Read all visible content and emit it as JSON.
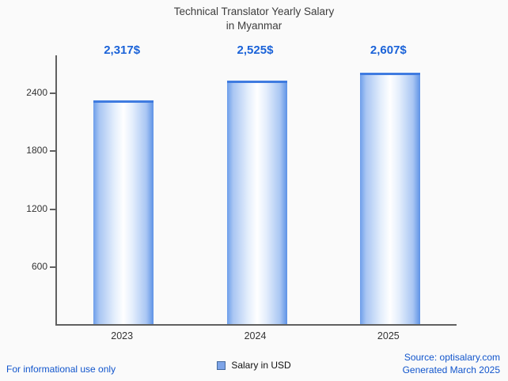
{
  "title": {
    "line1": "Technical Translator Yearly Salary",
    "line2": "in Myanmar"
  },
  "chart_data": {
    "type": "bar",
    "title": "Technical Translator Yearly Salary in Myanmar",
    "categories": [
      "2023",
      "2024",
      "2025"
    ],
    "values": [
      2317,
      2525,
      2607
    ],
    "value_labels": [
      "2,317$",
      "2,525$",
      "2,607$"
    ],
    "series_name": "Salary in USD",
    "xlabel": "",
    "ylabel": "",
    "ylim": [
      0,
      2785
    ],
    "yticks": [
      600,
      1200,
      1800,
      2400
    ],
    "grid": false,
    "legend_position": "bottom"
  },
  "legend": {
    "label": "Salary in USD"
  },
  "footer": {
    "left_note": "For informational use only",
    "source": "Source: optisalary.com",
    "generated": "Generated March 2025"
  },
  "colors": {
    "bar_fill_edge": "#5d92e6",
    "bar_cap": "#3f7be0",
    "value_text": "#1a62d8",
    "footer_text": "#1155cc",
    "axis": "#606060",
    "background": "#fafafa"
  }
}
